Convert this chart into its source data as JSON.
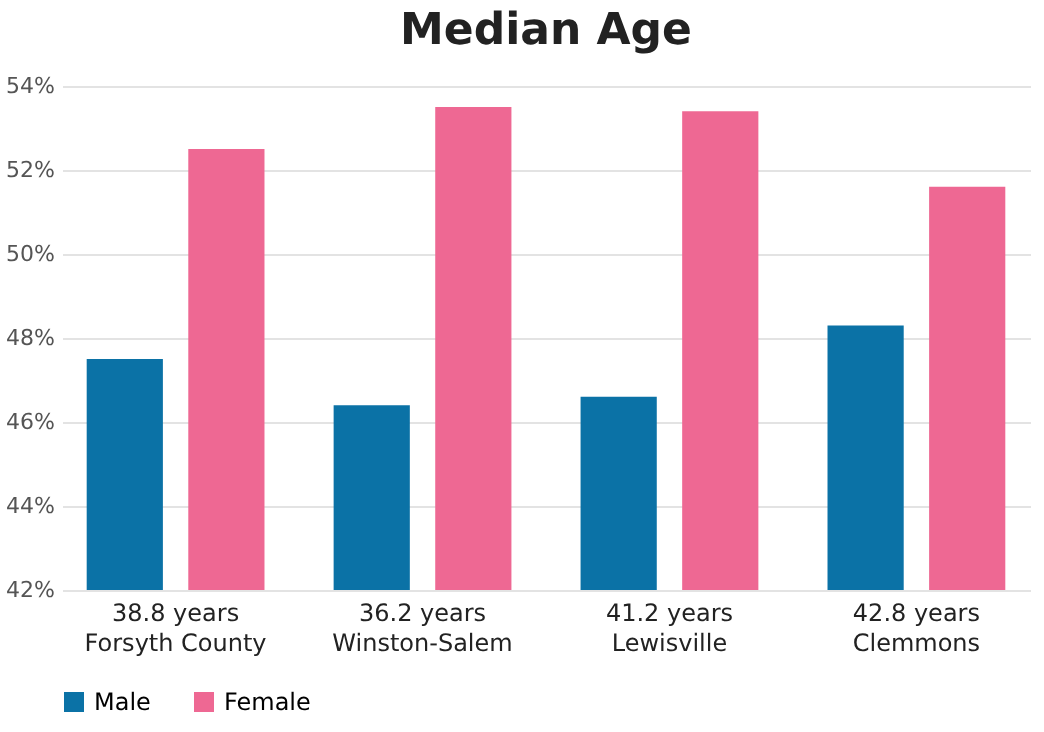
{
  "chart_data": {
    "type": "bar",
    "title": "Median Age",
    "categories": [
      "38.8 years\nForsyth County",
      "36.2 years\nWinston-Salem",
      "41.2 years\nLewisville",
      "42.8 years\nClemmons"
    ],
    "series": [
      {
        "name": "Male",
        "color": "#0b72a6",
        "values": [
          47.5,
          46.4,
          46.6,
          48.3
        ]
      },
      {
        "name": "Female",
        "color": "#ee6893",
        "values": [
          52.5,
          53.5,
          53.4,
          51.6
        ]
      }
    ],
    "ylim": [
      42,
      54
    ],
    "yticks": [
      {
        "value": 42,
        "label": "42%"
      },
      {
        "value": 44,
        "label": "44%"
      },
      {
        "value": 46,
        "label": "46%"
      },
      {
        "value": 48,
        "label": "48%"
      },
      {
        "value": 50,
        "label": "50%"
      },
      {
        "value": 52,
        "label": "52%"
      },
      {
        "value": 54,
        "label": "54%"
      }
    ],
    "grid": "y",
    "legend": "bottom"
  }
}
